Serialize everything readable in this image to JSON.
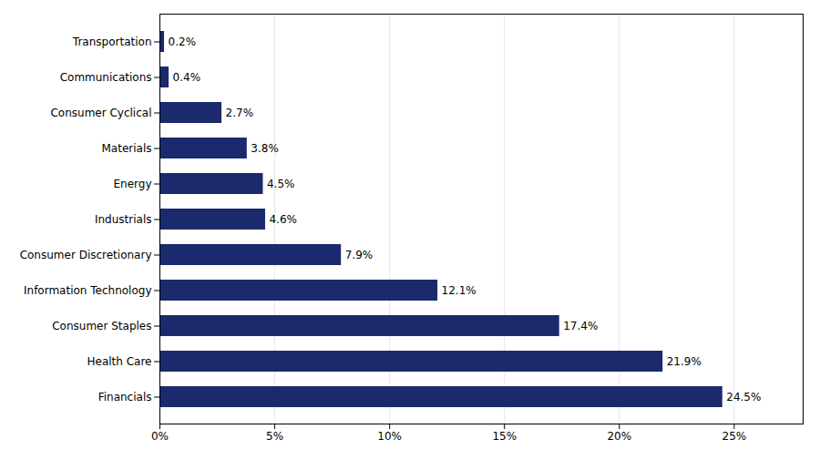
{
  "chart_data": {
    "type": "bar",
    "orientation": "horizontal",
    "categories": [
      "Financials",
      "Health Care",
      "Consumer Staples",
      "Information Technology",
      "Consumer Discretionary",
      "Industrials",
      "Energy",
      "Materials",
      "Consumer Cyclical",
      "Communications",
      "Transportation"
    ],
    "values": [
      24.5,
      21.9,
      17.4,
      12.1,
      7.9,
      4.6,
      4.5,
      3.8,
      2.7,
      0.4,
      0.2
    ],
    "value_labels": [
      "24.5%",
      "21.9%",
      "17.4%",
      "12.1%",
      "7.9%",
      "4.6%",
      "4.5%",
      "3.8%",
      "2.7%",
      "0.4%",
      "0.2%"
    ],
    "data_labels": true,
    "color": "#1a2a6c",
    "xlim": [
      0,
      28
    ],
    "xticks": [
      {
        "value": 0,
        "label": "0%"
      },
      {
        "value": 5,
        "label": "5%"
      },
      {
        "value": 10,
        "label": "10%"
      },
      {
        "value": 15,
        "label": "15%"
      },
      {
        "value": 20,
        "label": "20%"
      },
      {
        "value": 25,
        "label": "25%"
      }
    ],
    "grid": true
  }
}
